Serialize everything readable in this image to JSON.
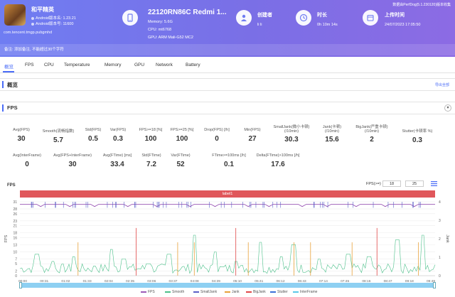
{
  "header": {
    "app_name": "和平精英",
    "android_version_label": "Android版本名: 1.23.21",
    "android_version_code": "Android版本号: 11600",
    "package": "com.tencent.tmgp.pubgmhd",
    "note": "备注: 添加备注, 不能超过30个字符",
    "top_tip": "数据由PerfDog(5.1.230120)版本收集",
    "device_title": "22120RN86C Redmi 1...",
    "memory": "Memory: 5.6G",
    "cpu": "CPU: mt6768",
    "gpu": "GPU: ARM Mali-G52 MC2",
    "creator_label": "创建者",
    "creator_value": "li li",
    "duration_label": "时长",
    "duration_value": "0h 10m 14s",
    "upload_label": "上传时间",
    "upload_value": "24/07/2023 17:05:50"
  },
  "tabs": [
    "概览",
    "FPS",
    "CPU",
    "Temperature",
    "Memory",
    "GPU",
    "Network",
    "Battery"
  ],
  "overview": {
    "title": "概览",
    "export": "导出全部"
  },
  "fps_section": {
    "title": "FPS",
    "collapse": "▾"
  },
  "stats_row1": [
    {
      "label": "Avg(FPS)",
      "value": "30"
    },
    {
      "label": "Smooth(流畅指数)",
      "value": "5.7"
    },
    {
      "label": "Std(FPS)",
      "value": "0.5"
    },
    {
      "label": "Var(FPS)",
      "value": "0.3"
    },
    {
      "label": "FPS>=18 [%]",
      "value": "100"
    },
    {
      "label": "FPS>=25 [%]",
      "value": "100"
    },
    {
      "label": "Drop(FPS) [/h]",
      "value": "0"
    },
    {
      "label": "Min(FPS)",
      "value": "27"
    },
    {
      "label": "SmallJank(微小卡顿)\n(/10min)",
      "value": "30.3"
    },
    {
      "label": "Jank(卡顿)\n(/10min)",
      "value": "15.6"
    },
    {
      "label": "BigJank(严重卡顿)\n(/10min)",
      "value": "2"
    },
    {
      "label": "Stutter(卡顿率 %)",
      "value": "0.3"
    }
  ],
  "stats_row2": [
    {
      "label": "Avg(InterFrame)",
      "value": "0"
    },
    {
      "label": "Avg(FPS+InterFrame)",
      "value": "30"
    },
    {
      "label": "Avg(FTime) [ms]",
      "value": "33.4"
    },
    {
      "label": "Std(FTime)",
      "value": "7.2"
    },
    {
      "label": "Var(FTime)",
      "value": "52"
    },
    {
      "label": "FTime>=100ms [/h]",
      "value": "0.1"
    },
    {
      "label": "Delta(FTime)>100ms [/h]",
      "value": "17.6"
    }
  ],
  "chart_controls": {
    "title": "FPS",
    "threshold_label": "FPS(>=)",
    "threshold1": "18",
    "threshold2": "25",
    "label_band": "label1"
  },
  "chart_data": {
    "type": "line",
    "ylabel_left": "FPS",
    "ylabel_right": "Jank",
    "ylim_left": [
      0,
      31
    ],
    "ylim_right": [
      0,
      4
    ],
    "y_ticks_left": [
      "0",
      "2",
      "5",
      "7",
      "10",
      "13",
      "16",
      "18",
      "21",
      "23",
      "26",
      "28",
      "31"
    ],
    "y_ticks_right": [
      "0",
      "1",
      "2",
      "3",
      "4"
    ],
    "x_ticks": [
      "00:00",
      "00:31",
      "01:02",
      "01:33",
      "02:04",
      "02:35",
      "03:06",
      "03:37",
      "04:08",
      "04:39",
      "05:10",
      "05:41",
      "06:12",
      "06:43",
      "07:14",
      "07:45",
      "08:16",
      "08:47",
      "09:18",
      "09:49"
    ],
    "fps_level": 30,
    "fps_dips": [
      5,
      12,
      18,
      26,
      33,
      41,
      47,
      55,
      60,
      68,
      74,
      81,
      88,
      95
    ],
    "smooth_peaks": [
      {
        "t": 0.04,
        "v": 9
      },
      {
        "t": 0.08,
        "v": 6
      },
      {
        "t": 0.13,
        "v": 8
      },
      {
        "t": 0.18,
        "v": 4
      },
      {
        "t": 0.22,
        "v": 11
      },
      {
        "t": 0.25,
        "v": 7
      },
      {
        "t": 0.31,
        "v": 5
      },
      {
        "t": 0.36,
        "v": 9
      },
      {
        "t": 0.42,
        "v": 17
      },
      {
        "t": 0.47,
        "v": 10
      },
      {
        "t": 0.52,
        "v": 6
      },
      {
        "t": 0.58,
        "v": 14
      },
      {
        "t": 0.63,
        "v": 8
      },
      {
        "t": 0.66,
        "v": 13
      },
      {
        "t": 0.72,
        "v": 7
      },
      {
        "t": 0.79,
        "v": 9
      },
      {
        "t": 0.84,
        "v": 8
      },
      {
        "t": 0.91,
        "v": 15
      },
      {
        "t": 0.97,
        "v": 17
      }
    ],
    "jank_points": [
      0.14,
      0.38,
      0.42,
      0.55,
      0.66,
      0.7,
      0.8,
      0.96
    ],
    "bigjank_points": [
      0.28,
      0.52,
      0.86
    ],
    "legend": [
      {
        "name": "FPS",
        "color": "#9b59b6"
      },
      {
        "name": "Smooth",
        "color": "#4cc08a"
      },
      {
        "name": "SmallJank",
        "color": "#5b5fc7"
      },
      {
        "name": "Jank",
        "color": "#e8a23a"
      },
      {
        "name": "BigJank",
        "color": "#e04848"
      },
      {
        "name": "Stutter",
        "color": "#3a6fd8"
      },
      {
        "name": "InterFrame",
        "color": "#5bc8e8"
      }
    ]
  }
}
